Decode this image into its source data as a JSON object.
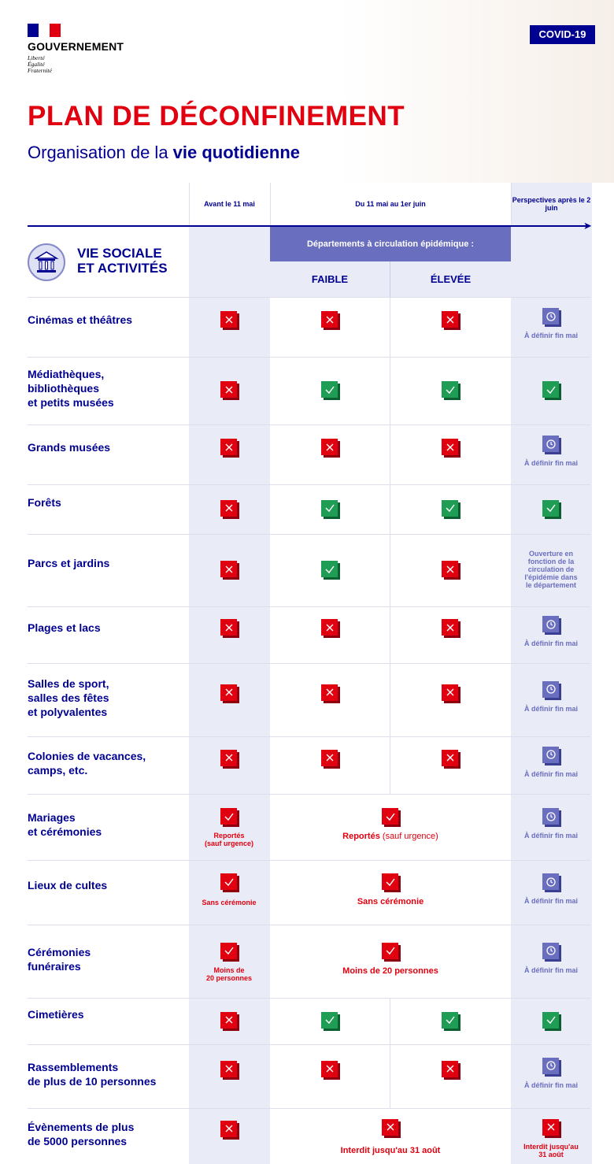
{
  "header": {
    "gov_name": "GOUVERNEMENT",
    "motto": [
      "Liberté",
      "Égalité",
      "Fraternité"
    ],
    "badge": "COVID-19",
    "title": "PLAN DE DÉCONFINEMENT",
    "subtitle_prefix": "Organisation de la ",
    "subtitle_bold": "vie quotidienne"
  },
  "columns": {
    "before": "Avant le 11 mai",
    "during": "Du 11 mai au 1er juin",
    "after": "Perspectives après le 2 juin",
    "dept_banner": "Départements à circulation épidémique :",
    "low": "FAIBLE",
    "high": "ÉLEVÉE"
  },
  "section": {
    "title_line1": "VIE SOCIALE",
    "title_line2": "ET ACTIVITÉS",
    "icon": "museum-icon"
  },
  "notes": {
    "a_definir": "À définir fin mai",
    "ouverture": "Ouverture en fonction de la circulation de l'épidémie dans le département",
    "reportes": "Reportés",
    "sauf_urgence": "(sauf urgence)",
    "sans_ceremonie": "Sans cérémonie",
    "moins_de": "Moins de",
    "vingt_personnes": "20 personnes",
    "moins_20_full": "Moins de 20 personnes",
    "interdit_31": "Interdit jusqu'au 31 août",
    "interdit_31_a": "Interdit jusqu'au",
    "interdit_31_b": "31 août"
  },
  "rows": [
    {
      "label": [
        "Cinémas et théâtres"
      ],
      "before": "no",
      "low": "no",
      "high": "no",
      "after": "def"
    },
    {
      "label": [
        "Médiathèques,",
        "bibliothèques",
        "et petits musées"
      ],
      "before": "no",
      "low": "yes",
      "high": "yes",
      "after": "yes"
    },
    {
      "label": [
        "Grands musées"
      ],
      "before": "no",
      "low": "no",
      "high": "no",
      "after": "def"
    },
    {
      "label": [
        "Forêts"
      ],
      "before": "no",
      "low": "yes",
      "high": "yes",
      "after": "yes"
    },
    {
      "label": [
        "Parcs et jardins"
      ],
      "before": "no",
      "low": "yes",
      "high": "no",
      "after": "text"
    },
    {
      "label": [
        "Plages et lacs"
      ],
      "before": "no",
      "low": "no",
      "high": "no",
      "after": "def"
    },
    {
      "label": [
        "Salles de sport,",
        "salles des fêtes",
        "et polyvalentes"
      ],
      "before": "no",
      "low": "no",
      "high": "no",
      "after": "def"
    },
    {
      "label": [
        "Colonies de vacances,",
        "camps, etc."
      ],
      "before": "no",
      "low": "no",
      "high": "no",
      "after": "def"
    },
    {
      "label": [
        "Mariages",
        "et cérémonies"
      ],
      "before": "warn",
      "during": "warn",
      "after": "def"
    },
    {
      "label": [
        "Lieux de cultes"
      ],
      "before": "warn",
      "during": "warn",
      "after": "def"
    },
    {
      "label": [
        "Cérémonies",
        "funéraires"
      ],
      "before": "warn",
      "during": "warn",
      "after": "def"
    },
    {
      "label": [
        "Cimetières"
      ],
      "before": "no",
      "low": "yes",
      "high": "yes",
      "after": "yes"
    },
    {
      "label": [
        "Rassemblements",
        "de plus de 10 personnes"
      ],
      "before": "no",
      "low": "no",
      "high": "no",
      "after": "def"
    },
    {
      "label": [
        "Évènements de plus",
        "de 5000 personnes"
      ],
      "before": "no",
      "during": "no",
      "after": "no"
    }
  ]
}
